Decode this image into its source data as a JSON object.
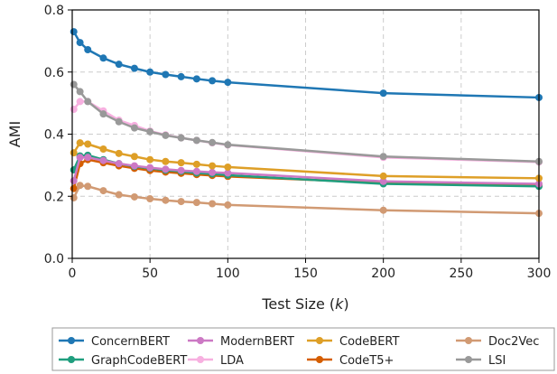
{
  "chart_data": {
    "type": "line",
    "xlabel": "Test Size",
    "xlabel_var": "k",
    "ylabel": "AMI",
    "xlim": [
      0,
      300
    ],
    "ylim": [
      0,
      0.8
    ],
    "xticks": [
      0,
      50,
      100,
      150,
      200,
      250,
      300
    ],
    "xtick_labels": [
      "0",
      "50",
      "100",
      "150",
      "200",
      "250",
      "300"
    ],
    "yticks": [
      0.0,
      0.2,
      0.4,
      0.6,
      0.8
    ],
    "ytick_labels": [
      "0.0",
      "0.2",
      "0.4",
      "0.6",
      "0.8"
    ],
    "grid": true,
    "legend_position": "bottom",
    "x": [
      1,
      5,
      10,
      20,
      30,
      40,
      50,
      60,
      70,
      80,
      90,
      100,
      200,
      300
    ],
    "series": [
      {
        "name": "ConcernBERT",
        "color": "#1f77b4",
        "values": [
          0.73,
          0.695,
          0.672,
          0.645,
          0.625,
          0.612,
          0.6,
          0.592,
          0.585,
          0.578,
          0.572,
          0.567,
          0.532,
          0.518
        ]
      },
      {
        "name": "ModernBERT",
        "color": "#cc79c4",
        "values": [
          0.25,
          0.325,
          0.325,
          0.315,
          0.305,
          0.298,
          0.292,
          0.287,
          0.283,
          0.28,
          0.277,
          0.275,
          0.248,
          0.24
        ]
      },
      {
        "name": "CodeBERT",
        "color": "#de9f27",
        "values": [
          0.34,
          0.372,
          0.368,
          0.352,
          0.338,
          0.328,
          0.318,
          0.312,
          0.308,
          0.303,
          0.298,
          0.294,
          0.265,
          0.258
        ]
      },
      {
        "name": "Doc2Vec",
        "color": "#d19a73",
        "values": [
          0.195,
          0.235,
          0.232,
          0.218,
          0.205,
          0.198,
          0.192,
          0.187,
          0.183,
          0.18,
          0.176,
          0.172,
          0.155,
          0.145
        ]
      },
      {
        "name": "GraphCodeBERT",
        "color": "#1f9e7e",
        "values": [
          0.285,
          0.33,
          0.332,
          0.318,
          0.305,
          0.296,
          0.29,
          0.284,
          0.28,
          0.275,
          0.272,
          0.268,
          0.24,
          0.232
        ]
      },
      {
        "name": "LDA",
        "color": "#f7b0e0",
        "values": [
          0.48,
          0.505,
          0.505,
          0.475,
          0.445,
          0.428,
          0.41,
          0.398,
          0.388,
          0.38,
          0.372,
          0.365,
          0.325,
          0.31
        ]
      },
      {
        "name": "CodeT5+",
        "color": "#d55e00",
        "values": [
          0.225,
          0.305,
          0.318,
          0.308,
          0.298,
          0.29,
          0.283,
          0.278,
          0.274,
          0.27,
          0.267,
          0.264,
          0.243,
          0.235
        ]
      },
      {
        "name": "LSI",
        "color": "#999999",
        "values": [
          0.56,
          0.537,
          0.505,
          0.465,
          0.44,
          0.42,
          0.408,
          0.396,
          0.388,
          0.38,
          0.373,
          0.366,
          0.328,
          0.312
        ]
      }
    ]
  }
}
